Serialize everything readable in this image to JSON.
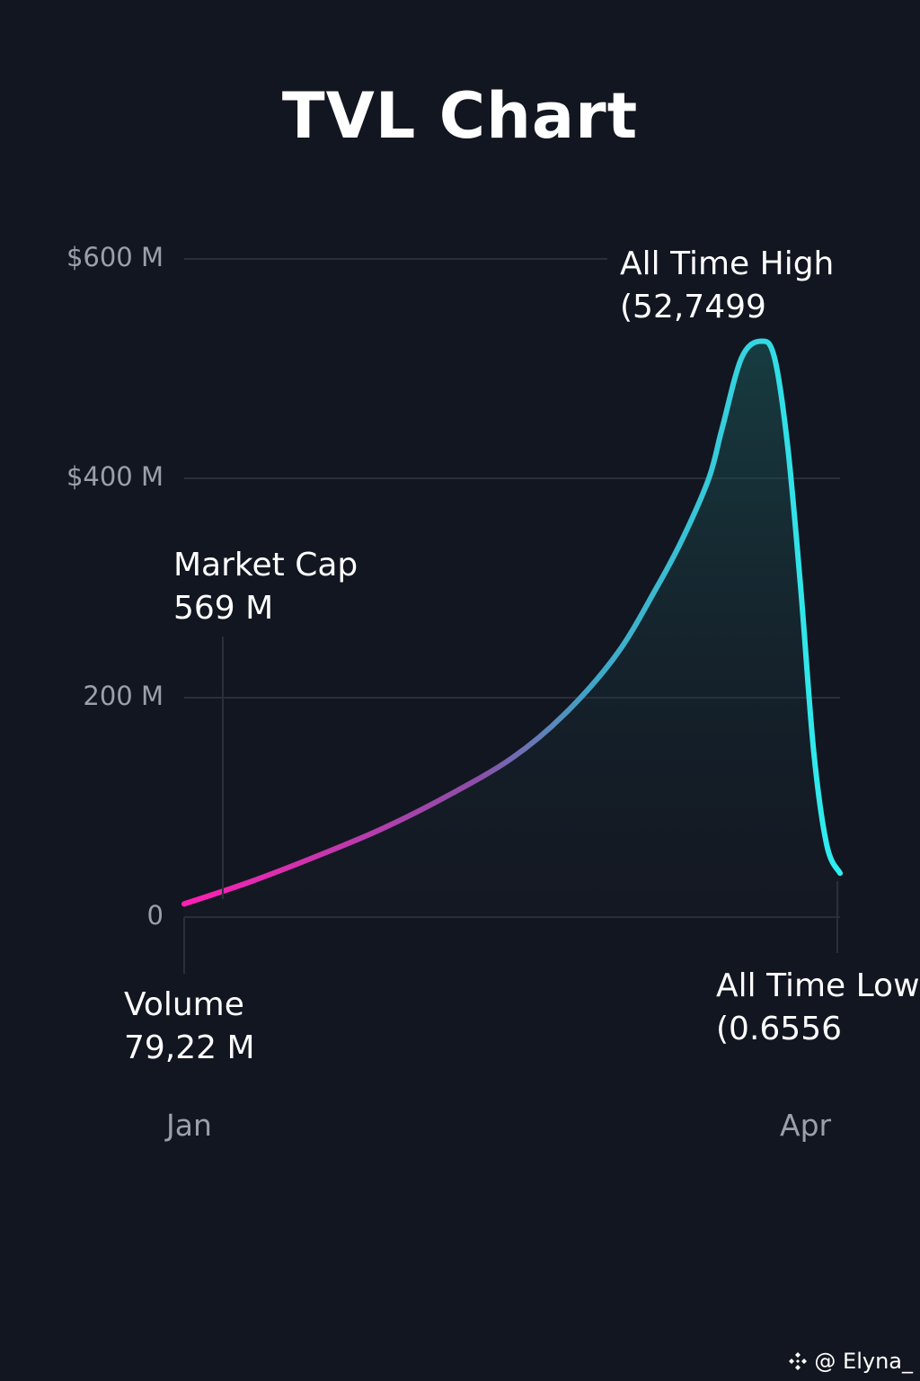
{
  "chart_data": {
    "type": "area",
    "title": "TVL Chart",
    "xlabel": "",
    "ylabel": "",
    "ylim": [
      0,
      600
    ],
    "grid": true,
    "y_tick_labels": [
      "0",
      "200 M",
      "$400 M",
      "$600 M"
    ],
    "y_tick_values": [
      0,
      200,
      400,
      600
    ],
    "x_tick_labels": [
      "Jan",
      "Apr"
    ],
    "xlim": [
      0,
      100
    ],
    "series": [
      {
        "x": [
          0,
          10,
          20,
          30,
          40,
          50,
          58,
          66,
          72,
          76,
          80,
          82,
          85,
          88,
          90,
          92,
          94,
          96,
          98,
          100
        ],
        "values": [
          12,
          32,
          55,
          80,
          110,
          145,
          185,
          240,
          300,
          345,
          400,
          445,
          510,
          525,
          510,
          430,
          300,
          150,
          65,
          40
        ]
      }
    ],
    "colors": {
      "line_start": "#ff1fb2",
      "line_end": "#2ef0f0",
      "grid": "#2a2f3a",
      "background": "#121620"
    },
    "annotations": {
      "market_cap": {
        "label": "Market Cap",
        "value": "569 M"
      },
      "all_time_high": {
        "label": "All Time High",
        "value": "(52,7499"
      },
      "volume": {
        "label": "Volume",
        "value": "79,22 M"
      },
      "all_time_low": {
        "label": "All Time Low",
        "value": "(0.6556"
      }
    }
  },
  "watermark": {
    "text": "@ Elyna_",
    "icon": "diamond-logo-icon"
  }
}
